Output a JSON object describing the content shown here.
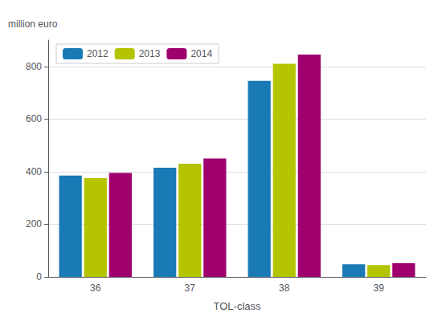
{
  "chart_data": {
    "type": "bar",
    "categories": [
      "36",
      "37",
      "38",
      "39"
    ],
    "series": [
      {
        "name": "2012",
        "color": "#1a7ab5",
        "values": [
          385,
          415,
          745,
          48
        ]
      },
      {
        "name": "2013",
        "color": "#b5c400",
        "values": [
          375,
          430,
          810,
          45
        ]
      },
      {
        "name": "2014",
        "color": "#a0006e",
        "values": [
          395,
          450,
          845,
          52
        ]
      }
    ],
    "xlabel": "TOL-class",
    "ylabel": "million euro",
    "ylim": [
      0,
      900
    ],
    "yticks": [
      0,
      200,
      400,
      600,
      800
    ],
    "grid": true,
    "legend": "upper left"
  }
}
